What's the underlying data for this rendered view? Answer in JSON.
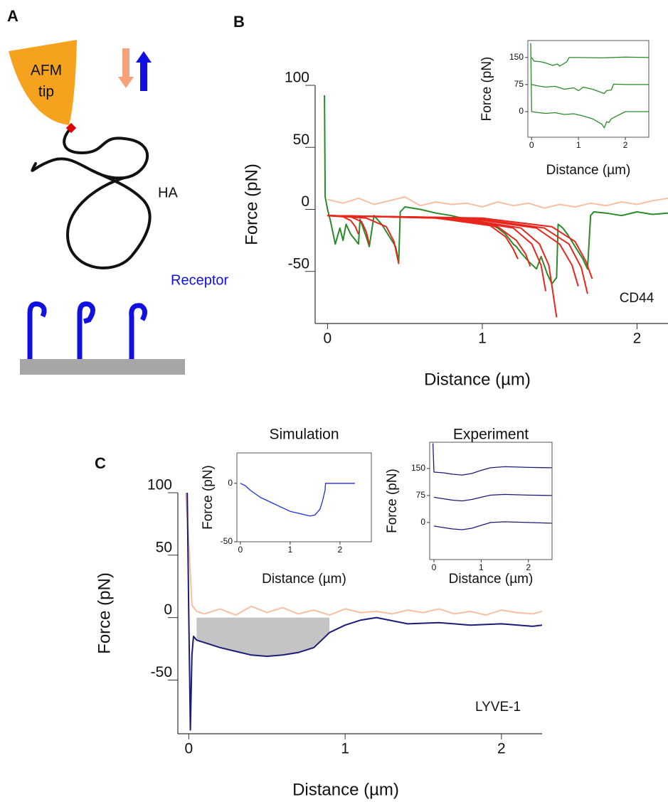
{
  "panel_labels": [
    "A",
    "B",
    "C"
  ],
  "diagram": {
    "tip": [
      "AFM",
      "tip"
    ],
    "polymer": "HA",
    "receptor": "Receptor"
  },
  "chart_data": [
    {
      "type": "line",
      "xlabel": "Distance (µm)",
      "ylabel": "Force (pN)",
      "annotation": "CD44",
      "xlim": [
        -0.08,
        2.2
      ],
      "ylim": [
        -92,
        100
      ],
      "xticks": [
        0,
        1,
        2
      ],
      "yticks": [
        -50,
        0,
        50,
        100
      ],
      "series": [
        {
          "color": "#f8bfa3",
          "x": [
            0,
            0.1,
            0.2,
            0.3,
            0.4,
            0.5,
            0.6,
            0.7,
            0.8,
            0.9,
            1.0,
            1.1,
            1.2,
            1.3,
            1.4,
            1.5,
            1.6,
            1.7,
            1.8,
            1.9,
            2.0,
            2.1,
            2.2
          ],
          "values": [
            8,
            5,
            9,
            4,
            7,
            10,
            3,
            6,
            4,
            5,
            2,
            6,
            3,
            5,
            1,
            4,
            2,
            5,
            3,
            6,
            4,
            7,
            9
          ]
        },
        {
          "color": "#2a8a2a",
          "x": [
            -0.02,
            -0.015,
            0.0,
            0.02,
            0.05,
            0.08,
            0.1,
            0.12,
            0.15,
            0.2,
            0.21,
            0.25,
            0.27,
            0.3,
            0.35,
            0.4,
            0.44,
            0.46,
            0.47,
            0.5,
            0.6,
            0.7,
            0.8,
            0.9,
            1.0,
            1.05,
            1.1,
            1.15,
            1.2,
            1.22,
            1.25,
            1.3,
            1.35,
            1.38,
            1.42,
            1.45,
            1.48,
            1.49,
            1.52,
            1.55,
            1.6,
            1.65,
            1.68,
            1.7,
            1.72,
            1.8,
            1.9,
            2.0,
            2.1,
            2.2
          ],
          "values": [
            92,
            10,
            0,
            -10,
            -28,
            -15,
            -25,
            -12,
            -20,
            -28,
            -8,
            -22,
            -30,
            -5,
            -12,
            -22,
            -30,
            -42,
            -2,
            2,
            0,
            -3,
            -5,
            -8,
            -10,
            -12,
            -15,
            -20,
            -28,
            -30,
            -35,
            -42,
            -48,
            -38,
            -52,
            -60,
            -55,
            -12,
            -15,
            -20,
            -30,
            -40,
            -48,
            -5,
            -2,
            -3,
            -5,
            -2,
            -4,
            -3
          ]
        },
        {
          "color": "#e8261c",
          "x": [
            0,
            0.1,
            0.15,
            0.18,
            0.2
          ],
          "values": [
            -5,
            -6,
            -9,
            -14,
            -20
          ]
        },
        {
          "color": "#e8261c",
          "x": [
            0,
            0.15,
            0.22,
            0.25,
            0.27
          ],
          "values": [
            -5,
            -6,
            -10,
            -18,
            -28
          ]
        },
        {
          "color": "#e8261c",
          "x": [
            0,
            0.25,
            0.38,
            0.43,
            0.46
          ],
          "values": [
            -5,
            -7,
            -14,
            -26,
            -44
          ]
        },
        {
          "color": "#e8261c",
          "x": [
            0,
            0.7,
            1.05,
            1.15,
            1.2,
            1.23
          ],
          "values": [
            -5,
            -7,
            -13,
            -22,
            -32,
            -40
          ]
        },
        {
          "color": "#e8261c",
          "x": [
            0,
            0.75,
            1.1,
            1.22,
            1.28,
            1.31
          ],
          "values": [
            -5,
            -7,
            -14,
            -25,
            -36,
            -46
          ]
        },
        {
          "color": "#e8261c",
          "x": [
            0,
            0.8,
            1.2,
            1.32,
            1.38,
            1.41
          ],
          "values": [
            -5,
            -7,
            -15,
            -28,
            -45,
            -66
          ]
        },
        {
          "color": "#e8261c",
          "x": [
            0,
            0.85,
            1.25,
            1.37,
            1.43,
            1.48
          ],
          "values": [
            -5,
            -7,
            -15,
            -28,
            -45,
            -87
          ]
        },
        {
          "color": "#e8261c",
          "x": [
            0,
            0.9,
            1.35,
            1.5,
            1.58,
            1.62
          ],
          "values": [
            -5,
            -7,
            -15,
            -28,
            -45,
            -62
          ]
        },
        {
          "color": "#e8261c",
          "x": [
            0,
            0.95,
            1.4,
            1.56,
            1.64,
            1.68
          ],
          "values": [
            -5,
            -7,
            -15,
            -28,
            -47,
            -68
          ]
        },
        {
          "color": "#e8261c",
          "x": [
            0,
            1.0,
            1.45,
            1.6,
            1.67,
            1.71
          ],
          "values": [
            -5,
            -7,
            -14,
            -26,
            -42,
            -56
          ]
        }
      ]
    },
    {
      "type": "line",
      "xlabel": "Distance (µm)",
      "ylabel": "Force (pN)",
      "xlim": [
        -0.08,
        2.5
      ],
      "ylim": [
        -71,
        197
      ],
      "xticks": [
        0,
        1,
        2
      ],
      "yticks": [
        0,
        75,
        150
      ],
      "series": [
        {
          "color": "#2a8a2a",
          "x": [
            0,
            0.05,
            0.2,
            0.3,
            0.45,
            0.55,
            0.6,
            0.75,
            0.8,
            1.0,
            1.5,
            2.0,
            2.5
          ],
          "values": [
            150,
            140,
            138,
            135,
            128,
            132,
            126,
            138,
            150,
            150,
            149,
            151,
            150
          ]
        },
        {
          "color": "#2a8a2a",
          "x": [
            0,
            0.1,
            0.3,
            0.5,
            0.7,
            0.9,
            1.0,
            1.1,
            1.3,
            1.45,
            1.55,
            1.6,
            1.7,
            1.75,
            2.0,
            2.5
          ],
          "values": [
            75,
            72,
            68,
            70,
            62,
            66,
            58,
            68,
            62,
            55,
            50,
            58,
            60,
            76,
            75,
            75
          ]
        },
        {
          "color": "#2a8a2a",
          "x": [
            -0.02,
            0,
            0.1,
            0.3,
            0.5,
            0.7,
            0.9,
            1.1,
            1.3,
            1.5,
            1.55,
            1.6,
            1.65,
            1.7,
            2.0,
            2.5
          ],
          "values": [
            190,
            0,
            -2,
            -5,
            -3,
            -8,
            -6,
            -12,
            -20,
            -35,
            -45,
            -28,
            -30,
            -20,
            0,
            0
          ]
        }
      ]
    },
    {
      "type": "line",
      "xlabel": "Distance (µm)",
      "ylabel": "Force (pN)",
      "annotation": "LYVE-1",
      "xlim": [
        -0.07,
        2.26
      ],
      "ylim": [
        -93,
        100
      ],
      "xticks": [
        0,
        1,
        2
      ],
      "yticks": [
        -50,
        0,
        50,
        100
      ],
      "series": [
        {
          "color": "#c4c4c4",
          "fill": true,
          "x": [
            0.05,
            0.1,
            0.2,
            0.3,
            0.4,
            0.5,
            0.6,
            0.7,
            0.8,
            0.9
          ],
          "values": [
            -18,
            -20,
            -24,
            -27,
            -30,
            -31,
            -30,
            -28,
            -24,
            -12
          ]
        },
        {
          "color": "#f8bfa3",
          "x": [
            -0.02,
            0.0,
            0.02,
            0.05,
            0.1,
            0.2,
            0.3,
            0.4,
            0.5,
            0.6,
            0.7,
            0.8,
            0.9,
            1.0,
            1.1,
            1.2,
            1.3,
            1.4,
            1.5,
            1.6,
            1.7,
            1.8,
            1.9,
            2.0,
            2.1,
            2.2,
            2.26
          ],
          "values": [
            100,
            60,
            10,
            5,
            3,
            7,
            2,
            9,
            4,
            8,
            3,
            6,
            2,
            7,
            4,
            5,
            3,
            6,
            4,
            7,
            3,
            5,
            2,
            6,
            4,
            3,
            5
          ]
        },
        {
          "color": "#1b1b78",
          "x": [
            -0.01,
            0.0,
            0.01,
            0.02,
            0.03,
            0.05,
            0.1,
            0.2,
            0.3,
            0.4,
            0.5,
            0.6,
            0.7,
            0.8,
            0.85,
            0.9,
            1.0,
            1.1,
            1.2,
            1.4,
            1.6,
            1.8,
            2.0,
            2.2,
            2.26
          ],
          "values": [
            100,
            0,
            -90,
            -30,
            -15,
            -18,
            -20,
            -24,
            -27,
            -30,
            -31,
            -30,
            -28,
            -24,
            -18,
            -12,
            -6,
            -2,
            0,
            -5,
            -4,
            -6,
            -5,
            -7,
            -6
          ]
        }
      ]
    },
    {
      "type": "line",
      "title": "Simulation",
      "xlabel": "Distance (µm)",
      "ylabel": "Force (pN)",
      "xlim": [
        -0.07,
        2.63
      ],
      "ylim": [
        -50,
        26
      ],
      "xticks": [
        0,
        1,
        2
      ],
      "yticks": [
        -50,
        0
      ],
      "series": [
        {
          "color": "#1f2fe0",
          "x": [
            0,
            0.1,
            0.2,
            0.4,
            0.6,
            0.8,
            1.0,
            1.2,
            1.4,
            1.5,
            1.6,
            1.65,
            1.7,
            1.71,
            2.0,
            2.3
          ],
          "values": [
            0,
            -2,
            -6,
            -12,
            -16,
            -20,
            -24,
            -26,
            -28,
            -27,
            -22,
            -15,
            -6,
            0,
            0,
            0
          ]
        }
      ]
    },
    {
      "type": "line",
      "title": "Experiment",
      "xlabel": "Distance (µm)",
      "ylabel": "Force (pN)",
      "xlim": [
        -0.09,
        2.5
      ],
      "ylim": [
        -103,
        223
      ],
      "xticks": [
        0,
        1,
        2
      ],
      "yticks": [
        0,
        75,
        150
      ],
      "series": [
        {
          "color": "#1b1b78",
          "x": [
            -0.02,
            0,
            0.2,
            0.4,
            0.6,
            0.8,
            1.0,
            1.2,
            1.5,
            2.0,
            2.5
          ],
          "values": [
            220,
            140,
            138,
            134,
            132,
            136,
            145,
            152,
            155,
            153,
            152
          ]
        },
        {
          "color": "#1b1b78",
          "x": [
            0,
            0.2,
            0.4,
            0.6,
            0.8,
            1.0,
            1.2,
            1.5,
            2.0,
            2.5
          ],
          "values": [
            70,
            66,
            62,
            60,
            64,
            70,
            76,
            78,
            76,
            75
          ]
        },
        {
          "color": "#1b1b78",
          "x": [
            0,
            0.2,
            0.4,
            0.6,
            0.8,
            1.0,
            1.2,
            1.5,
            2.0,
            2.5
          ],
          "values": [
            -10,
            -14,
            -18,
            -20,
            -16,
            -8,
            0,
            2,
            0,
            -2
          ]
        }
      ]
    }
  ]
}
